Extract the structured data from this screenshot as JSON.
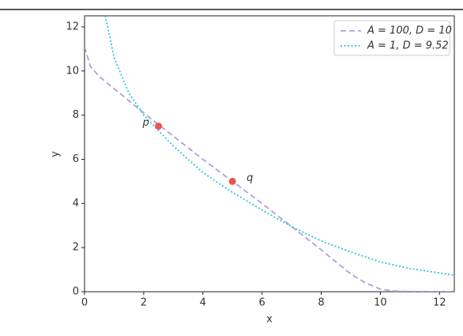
{
  "chart_data": {
    "type": "line",
    "xlabel": "x",
    "ylabel": "y",
    "xlim": [
      0,
      12.5
    ],
    "ylim": [
      0,
      12.5
    ],
    "xticks": [
      0,
      2,
      4,
      6,
      8,
      10,
      12
    ],
    "yticks": [
      0,
      2,
      4,
      6,
      8,
      10,
      12
    ],
    "legend": "upper right",
    "series": [
      {
        "name": "A = 100, D = 10",
        "color": "#b39ddb",
        "style": "dashed",
        "x": [
          0,
          0.2,
          0.5,
          1,
          1.5,
          2,
          3,
          4,
          5,
          6,
          7,
          8,
          8.5,
          9,
          9.5,
          10,
          10.5,
          11,
          12,
          12.5
        ],
        "values": [
          11.1,
          10.2,
          9.75,
          9.2,
          8.65,
          8.1,
          7.05,
          6.0,
          5.0,
          4.0,
          2.95,
          1.9,
          1.35,
          0.8,
          0.4,
          0.12,
          0.03,
          0.01,
          0,
          0
        ]
      },
      {
        "name": "A = 1, D = 9.52",
        "color": "#26c6da",
        "style": "dotted",
        "x": [
          0.7,
          1,
          1.5,
          2,
          2.5,
          3,
          4,
          5,
          6,
          7,
          8,
          9,
          10,
          11,
          12,
          12.5
        ],
        "values": [
          12.5,
          10.6,
          9.0,
          8.0,
          7.3,
          6.6,
          5.4,
          4.5,
          3.7,
          2.95,
          2.3,
          1.8,
          1.35,
          1.05,
          0.85,
          0.75
        ]
      }
    ],
    "points": [
      {
        "label": "p",
        "x": 2.5,
        "y": 7.5,
        "color": "#ef5350"
      },
      {
        "label": "q",
        "x": 5,
        "y": 5,
        "color": "#ef5350"
      }
    ]
  }
}
